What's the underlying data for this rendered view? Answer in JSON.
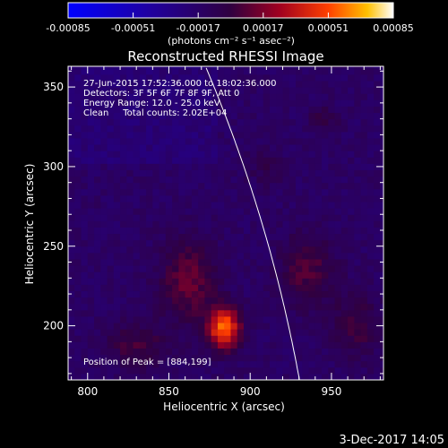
{
  "chart_data": {
    "type": "heatmap",
    "title": "Reconstructed RHESSI Image",
    "xlabel": "Heliocentric X (arcsec)",
    "ylabel": "Heliocentric Y (arcsec)",
    "xlim": [
      788,
      982
    ],
    "ylim": [
      166,
      363
    ],
    "x_ticks": [
      800,
      850,
      900,
      950
    ],
    "y_ticks": [
      200,
      250,
      300,
      350
    ],
    "colorbar": {
      "ticks": [
        "-0.00085",
        "-0.00051",
        "-0.00017",
        "0.00017",
        "0.00051",
        "0.00085"
      ],
      "range": [
        -0.00085,
        0.00085
      ],
      "unit_label": "(photons cm⁻² s⁻¹ asec⁻²)"
    },
    "annotations": [
      "27-Jun-2015 17:52:36.000 to 18:02:36.000",
      "Detectors: 3F 5F 6F 7F 8F 9F, Att 0",
      "Energy Range: 12.0 - 25.0 keV",
      "Clean     Total counts: 2.02E+04"
    ],
    "peak_label": "Position of Peak = [884,199]",
    "peak": {
      "x": 884,
      "y": 199
    },
    "date_stamp": "3-Dec-2017 14:05",
    "sources": [
      {
        "x": 884,
        "y": 199,
        "amp": 0.85,
        "sx": 7,
        "sy": 9
      },
      {
        "x": 862,
        "y": 228,
        "amp": 0.32,
        "sx": 12,
        "sy": 18
      },
      {
        "x": 830,
        "y": 188,
        "amp": 0.22,
        "sx": 14,
        "sy": 10
      },
      {
        "x": 935,
        "y": 235,
        "amp": 0.26,
        "sx": 12,
        "sy": 16
      },
      {
        "x": 965,
        "y": 200,
        "amp": 0.22,
        "sx": 10,
        "sy": 14
      },
      {
        "x": 945,
        "y": 330,
        "amp": 0.18,
        "sx": 6,
        "sy": 6
      },
      {
        "x": 910,
        "y": 300,
        "amp": 0.12,
        "sx": 8,
        "sy": 8
      }
    ]
  }
}
